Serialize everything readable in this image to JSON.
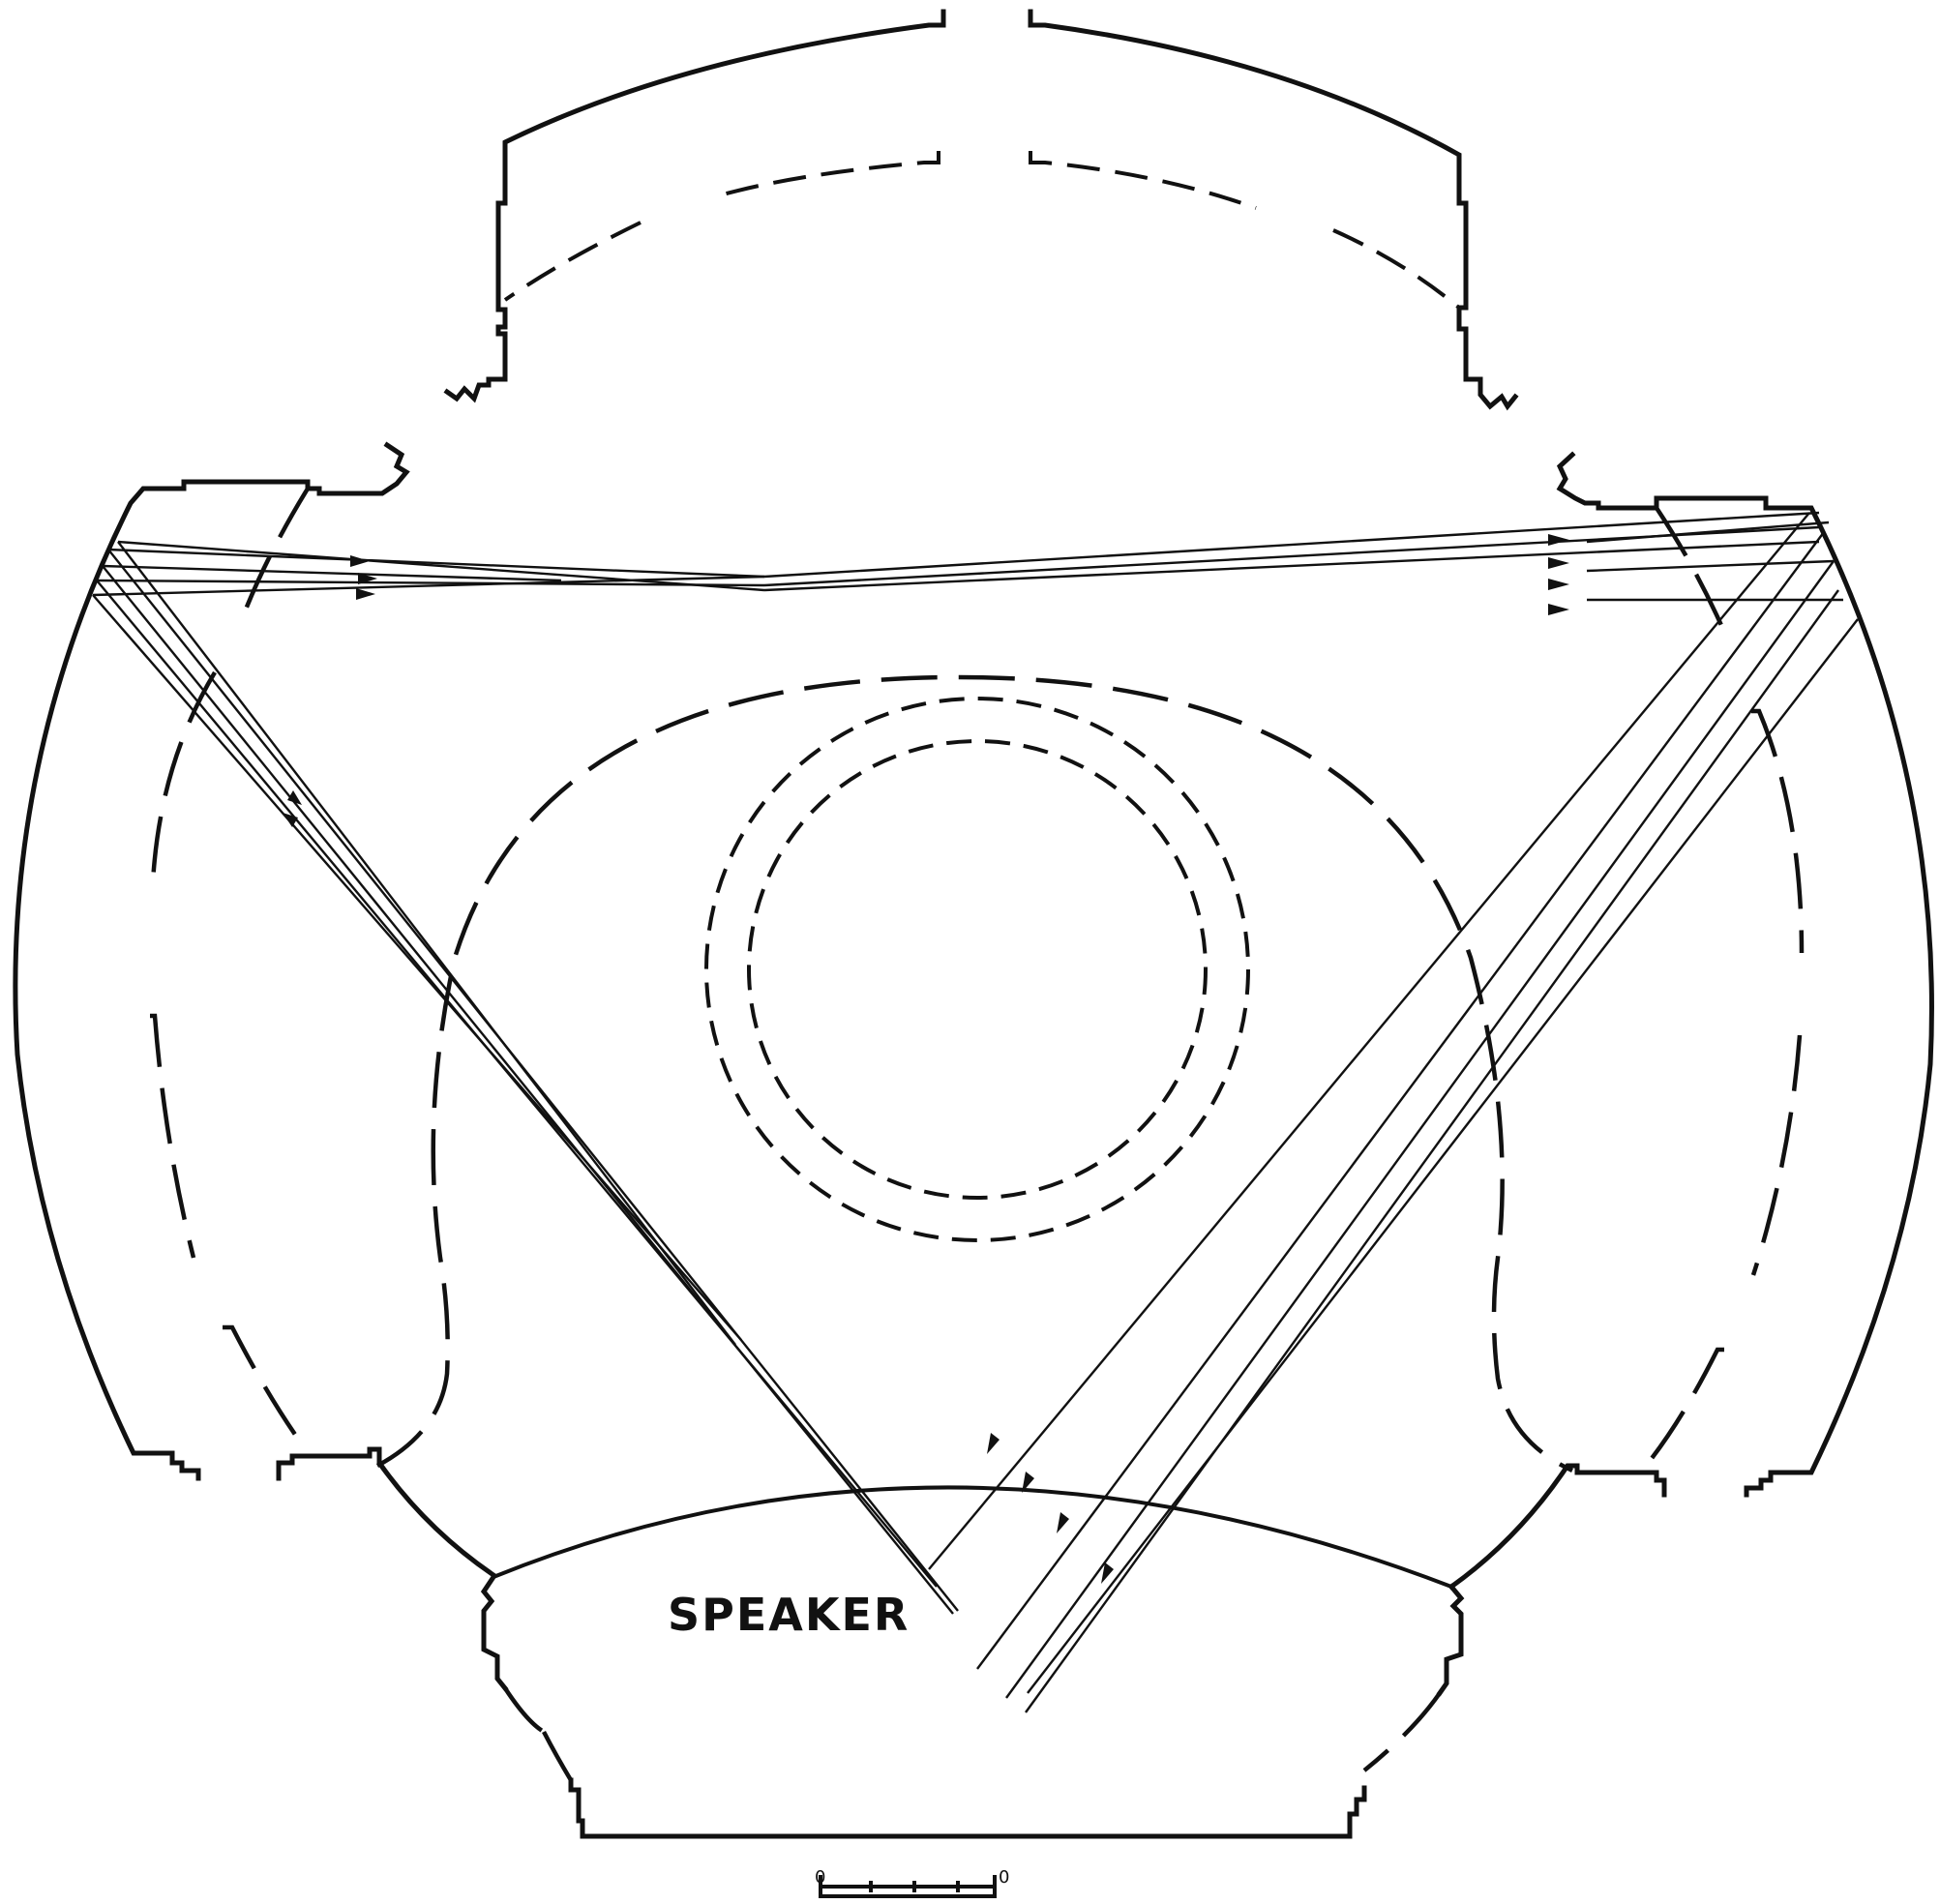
{
  "speaker_label": "SPEAKER",
  "scale_bar": {
    "start": "0",
    "end": "0"
  },
  "colors": {
    "ink": "#111111",
    "paper": "#ffffff"
  }
}
